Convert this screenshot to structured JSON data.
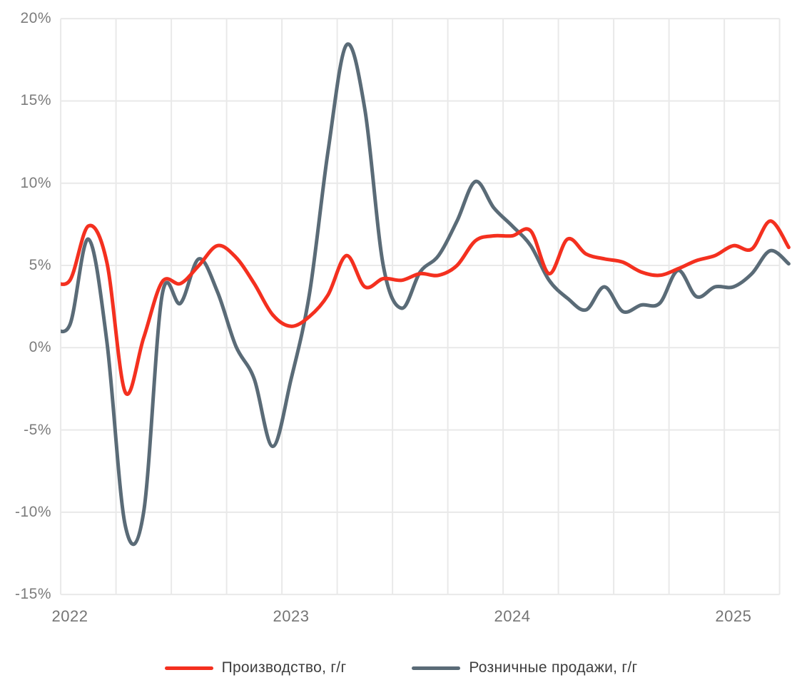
{
  "chart_data": {
    "type": "line",
    "title": "",
    "x_unit": "month",
    "grid": "both",
    "legend_position": "bottom",
    "ylim": [
      -15,
      20
    ],
    "months": [
      "2021-12",
      "2022-01",
      "2022-02",
      "2022-03",
      "2022-04",
      "2022-05",
      "2022-06",
      "2022-07",
      "2022-08",
      "2022-09",
      "2022-10",
      "2022-11",
      "2022-12",
      "2023-01",
      "2023-02",
      "2023-03",
      "2023-04",
      "2023-05",
      "2023-06",
      "2023-07",
      "2023-08",
      "2023-09",
      "2023-10",
      "2023-11",
      "2023-12",
      "2024-01",
      "2024-02",
      "2024-03",
      "2024-04",
      "2024-05",
      "2024-06",
      "2024-07",
      "2024-08",
      "2024-09",
      "2024-10",
      "2024-11",
      "2024-12",
      "2025-01",
      "2025-02",
      "2025-03",
      "2025-04"
    ],
    "series": [
      {
        "name": "Производство, г/г",
        "color": "#f4301f",
        "values": [
          4.1,
          4.1,
          7.4,
          5.2,
          -2.7,
          0.6,
          4.0,
          3.9,
          5.0,
          6.2,
          5.5,
          3.9,
          2.0,
          1.3,
          1.9,
          3.2,
          5.6,
          3.7,
          4.2,
          4.1,
          4.5,
          4.4,
          5.0,
          6.5,
          6.8,
          6.8,
          7.1,
          4.5,
          6.6,
          5.7,
          5.4,
          5.2,
          4.6,
          4.4,
          4.8,
          5.3,
          5.6,
          6.2,
          6.0,
          7.7,
          6.1
        ]
      },
      {
        "name": "Розничные продажи, г/г",
        "color": "#5a6b77",
        "values": [
          1.3,
          1.4,
          6.6,
          0.4,
          -10.8,
          -10.0,
          3.2,
          2.7,
          5.4,
          3.4,
          0.1,
          -1.9,
          -6.0,
          -1.9,
          3.3,
          11.9,
          18.4,
          14.5,
          5.0,
          2.4,
          4.6,
          5.6,
          7.7,
          10.1,
          8.5,
          7.4,
          6.2,
          4.1,
          3.0,
          2.3,
          3.7,
          2.2,
          2.6,
          2.7,
          4.7,
          3.1,
          3.7,
          3.7,
          4.5,
          5.9,
          5.1
        ]
      }
    ],
    "y_ticks": [
      {
        "value": 20,
        "label": "20%"
      },
      {
        "value": 15,
        "label": "15%"
      },
      {
        "value": 10,
        "label": "10%"
      },
      {
        "value": 5,
        "label": "5%"
      },
      {
        "value": 0,
        "label": "0%"
      },
      {
        "value": -5,
        "label": "-5%"
      },
      {
        "value": -10,
        "label": "-10%"
      },
      {
        "value": -15,
        "label": "-15%"
      }
    ],
    "x_ticks": [
      {
        "month": "2022-01",
        "label": "2022"
      },
      {
        "month": "2023-01",
        "label": "2023"
      },
      {
        "month": "2024-01",
        "label": "2024"
      },
      {
        "month": "2025-01",
        "label": "2025"
      }
    ],
    "grid_color": "#e9e9e9"
  }
}
